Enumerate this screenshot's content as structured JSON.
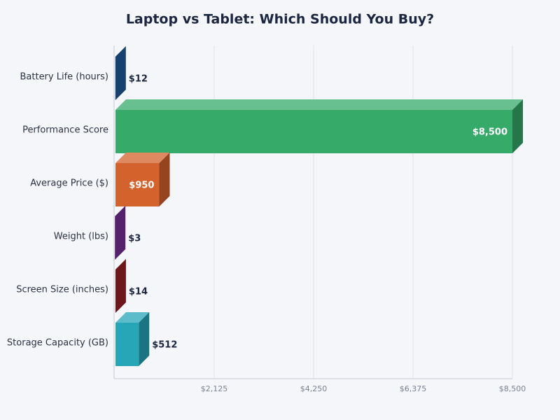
{
  "chart_data": {
    "type": "bar3d",
    "orientation": "horizontal",
    "title": "Laptop vs Tablet: Which Should You Buy?",
    "categories": [
      "Battery Life (hours)",
      "Performance Score",
      "Average Price ($)",
      "Weight (lbs)",
      "Screen Size (inches)",
      "Storage Capacity (GB)"
    ],
    "values": [
      12,
      8500,
      950,
      3,
      14,
      512
    ],
    "value_labels": [
      "$12",
      "$8,500",
      "$950",
      "$3",
      "$14",
      "$512"
    ],
    "colors": [
      "#1f5b9b",
      "#35aa69",
      "#d4622c",
      "#7a2f9b",
      "#9c1f27",
      "#27a6b8"
    ],
    "xlim": [
      0,
      8500
    ],
    "xticks": [
      {
        "value": 2125,
        "label": "$2,125"
      },
      {
        "value": 4250,
        "label": "$4,250"
      },
      {
        "value": 6375,
        "label": "$6,375"
      },
      {
        "value": 8500,
        "label": "$8,500"
      }
    ],
    "grid": true
  }
}
